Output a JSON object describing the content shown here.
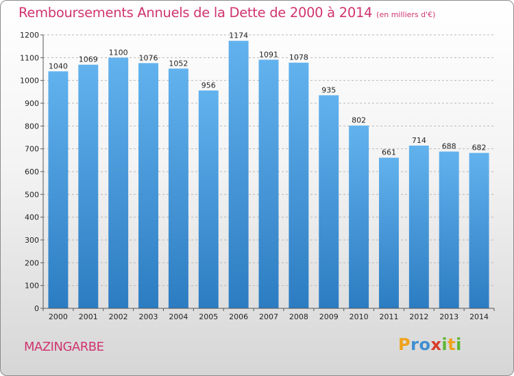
{
  "chart_data": {
    "type": "bar",
    "title": "Remboursements Annuels de la Dette de 2000 à 2014",
    "subtitle": "(en milliers d'€)",
    "categories": [
      "2000",
      "2001",
      "2002",
      "2003",
      "2004",
      "2005",
      "2006",
      "2007",
      "2008",
      "2009",
      "2010",
      "2011",
      "2012",
      "2013",
      "2014"
    ],
    "values": [
      1040,
      1069,
      1100,
      1076,
      1052,
      956,
      1174,
      1091,
      1078,
      935,
      802,
      661,
      714,
      688,
      682
    ],
    "ylim": [
      0,
      1200
    ],
    "yticks": [
      0,
      100,
      200,
      300,
      400,
      500,
      600,
      700,
      800,
      900,
      1000,
      1100,
      1200
    ],
    "grid": true,
    "bar_color": "#4a9ad8"
  },
  "footer": {
    "commune": "MAZINGARBE",
    "logo_letters": [
      {
        "ch": "P",
        "color": "#f0a21a"
      },
      {
        "ch": "r",
        "color": "#3f8fd0"
      },
      {
        "ch": "o",
        "color": "#3f8fd0"
      },
      {
        "ch": "x",
        "color": "#d83a2a"
      },
      {
        "ch": "i",
        "color": "#5cb531"
      },
      {
        "ch": "t",
        "color": "#f0a21a"
      },
      {
        "ch": "i",
        "color": "#5cb531"
      }
    ]
  }
}
